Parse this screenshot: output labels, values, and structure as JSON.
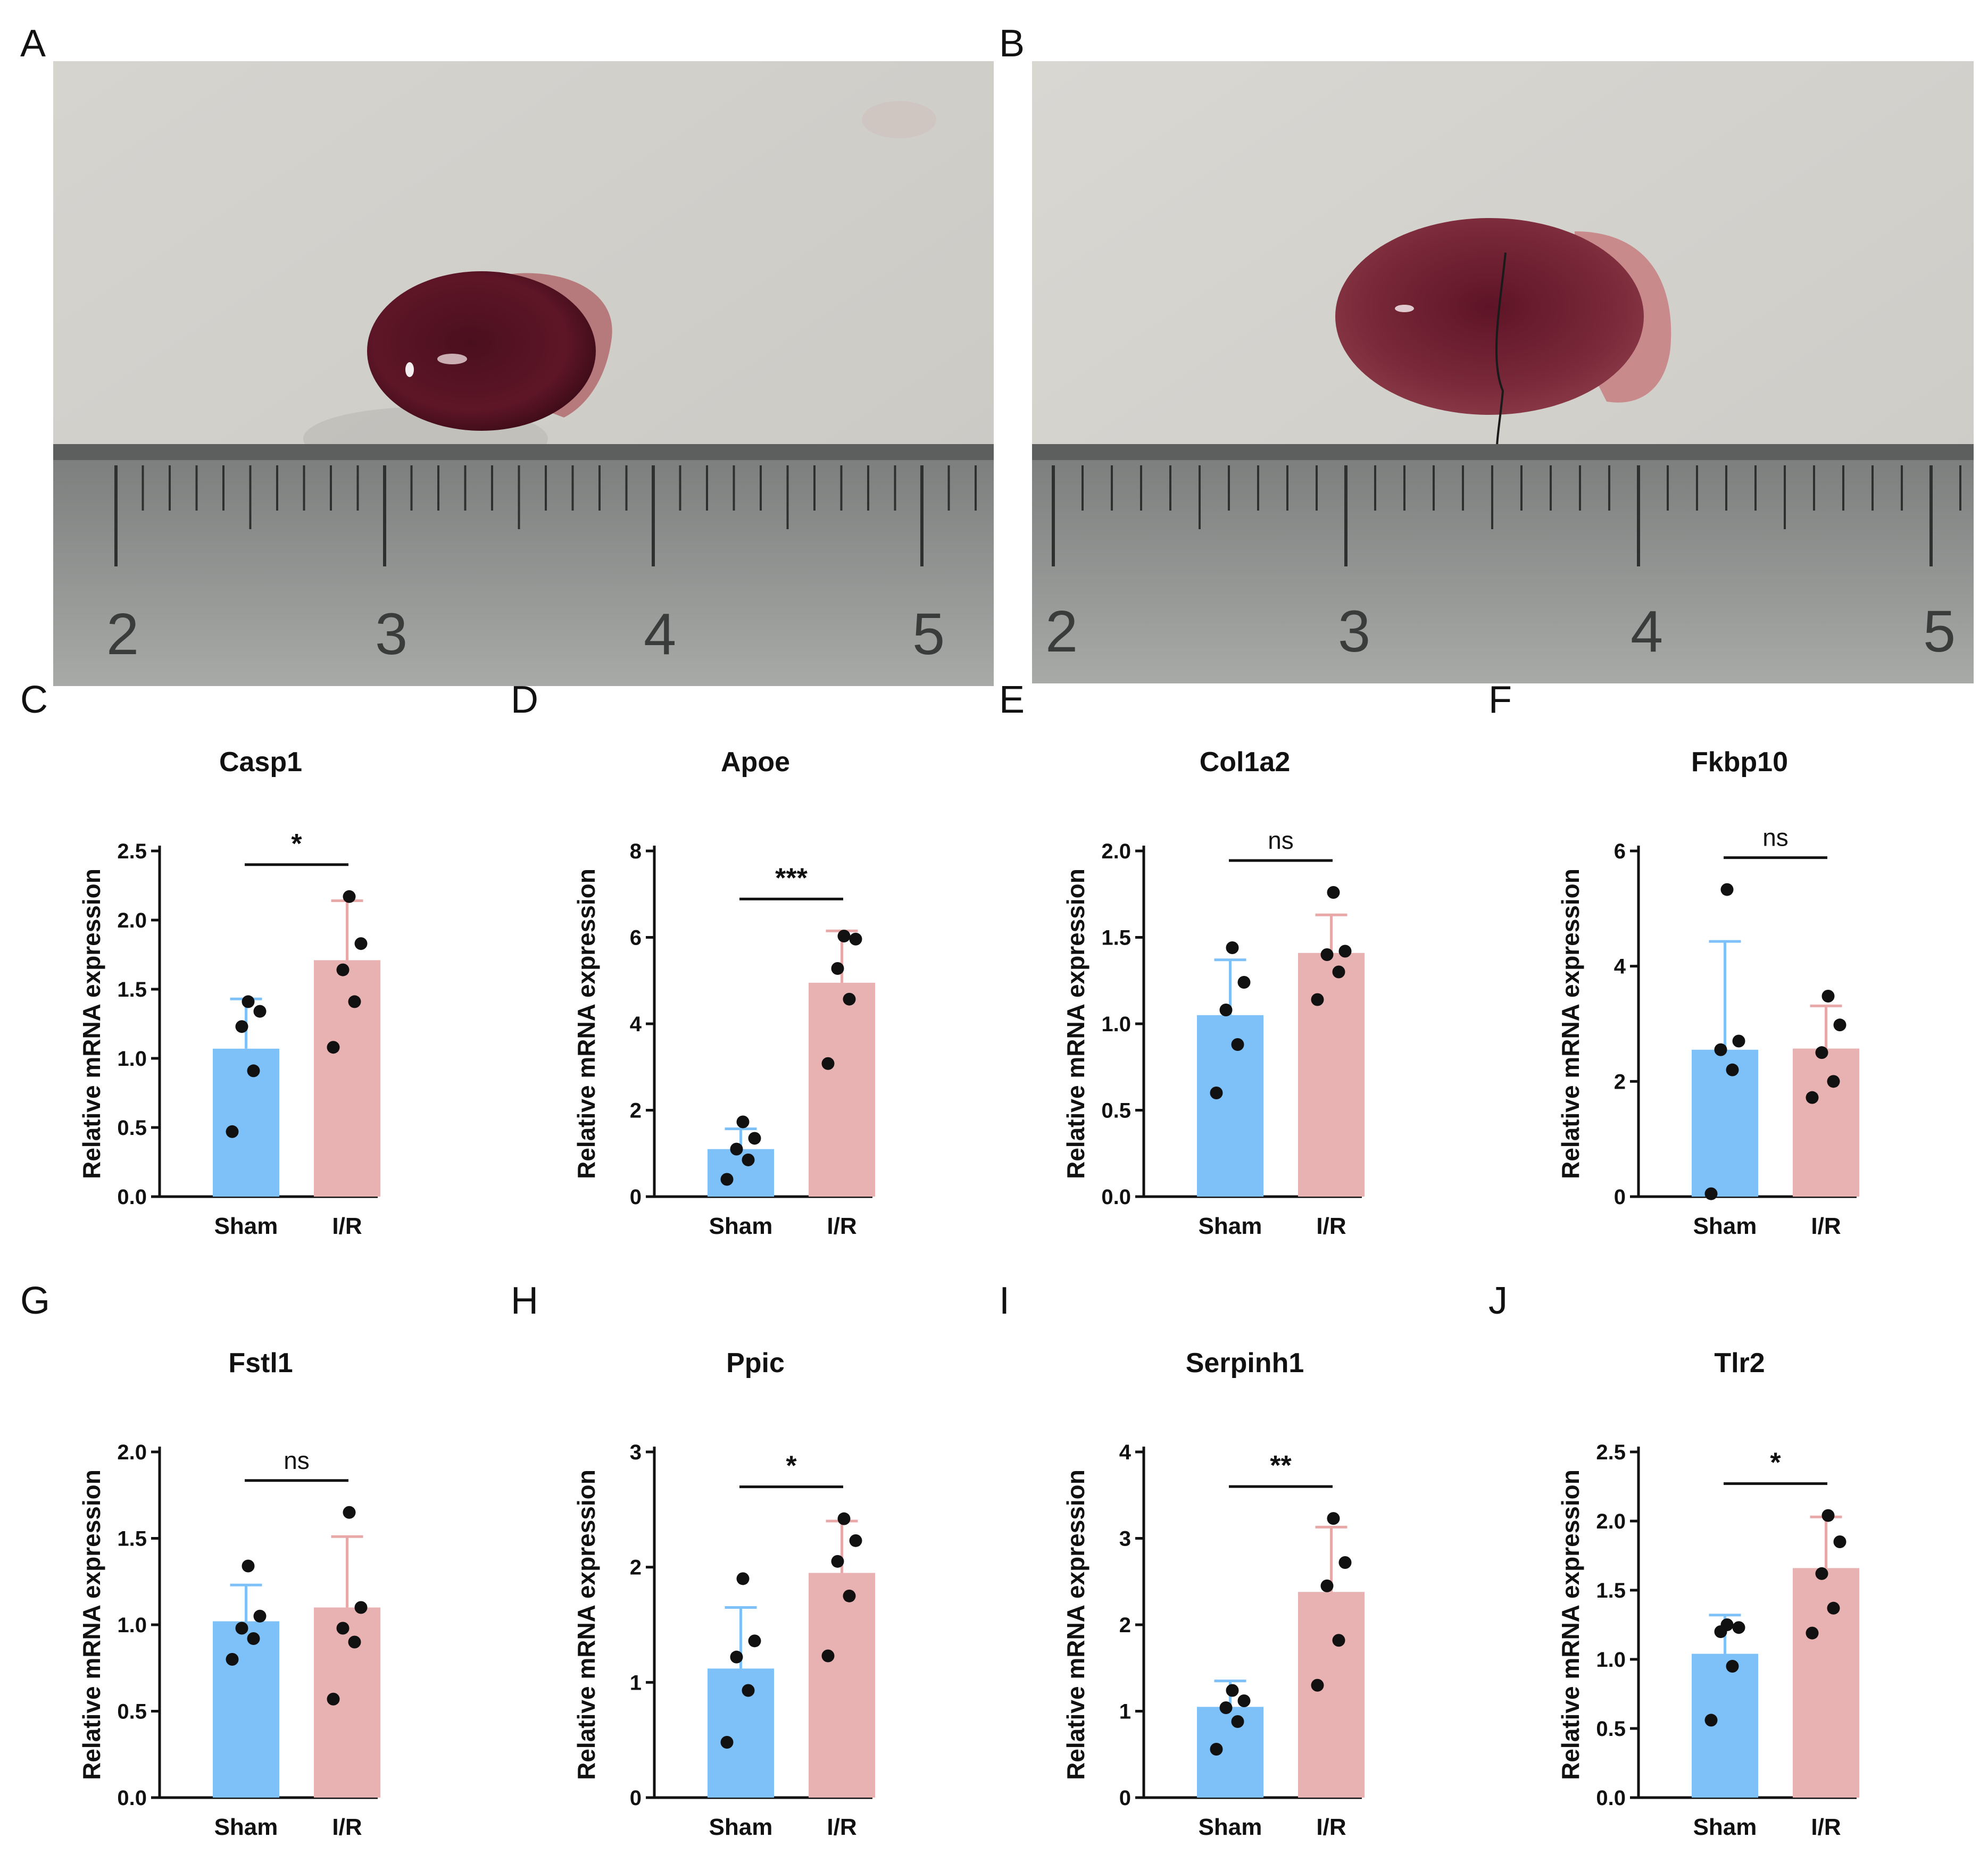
{
  "figure": {
    "panel_letters": [
      "A",
      "B",
      "C",
      "D",
      "E",
      "F",
      "G",
      "H",
      "I",
      "J"
    ],
    "photos": [
      {
        "panel": "A",
        "ruler_numbers": [
          "2",
          "3",
          "4",
          "5"
        ],
        "organ": "small-kidney"
      },
      {
        "panel": "B",
        "ruler_numbers": [
          "2",
          "3",
          "4",
          "5"
        ],
        "organ": "large-kidney"
      }
    ]
  },
  "colors": {
    "sham": "#7ec0f8",
    "ir": "#e8b2b2",
    "sham_err": "#7ec0f8",
    "ir_err": "#e8a8a8",
    "ink": "#111111"
  },
  "chart_data": [
    {
      "panel": "C",
      "type": "bar",
      "title": "Casp1",
      "ylabel": "Relative mRNA expression",
      "categories": [
        "Sham",
        "I/R"
      ],
      "ylim": [
        0,
        2.5
      ],
      "yticks": [
        "0.0",
        "0.5",
        "1.0",
        "1.5",
        "2.0",
        "2.5"
      ],
      "ytick_values": [
        0,
        0.5,
        1,
        1.5,
        2,
        2.5
      ],
      "values": [
        1.07,
        1.71
      ],
      "errors": [
        0.36,
        0.43
      ],
      "points": [
        [
          0.47,
          0.91,
          1.23,
          1.34,
          1.41
        ],
        [
          1.08,
          1.41,
          1.64,
          1.83,
          2.17
        ]
      ],
      "significance": "*"
    },
    {
      "panel": "D",
      "type": "bar",
      "title": "Apoe",
      "ylabel": "Relative mRNA expression",
      "categories": [
        "Sham",
        "I/R"
      ],
      "ylim": [
        0,
        8
      ],
      "yticks": [
        "0",
        "2",
        "4",
        "6",
        "8"
      ],
      "ytick_values": [
        0,
        2,
        4,
        6,
        8
      ],
      "values": [
        1.1,
        4.95
      ],
      "errors": [
        0.47,
        1.2
      ],
      "points": [
        [
          0.4,
          0.85,
          1.1,
          1.35,
          1.73
        ],
        [
          3.08,
          4.57,
          5.28,
          5.96,
          6.03
        ]
      ],
      "significance": "***"
    },
    {
      "panel": "E",
      "type": "bar",
      "title": "Col1a2",
      "ylabel": "Relative mRNA expression",
      "categories": [
        "Sham",
        "I/R"
      ],
      "ylim": [
        0,
        2.0
      ],
      "yticks": [
        "0.0",
        "0.5",
        "1.0",
        "1.5",
        "2.0"
      ],
      "ytick_values": [
        0,
        0.5,
        1,
        1.5,
        2
      ],
      "values": [
        1.05,
        1.41
      ],
      "errors": [
        0.32,
        0.22
      ],
      "points": [
        [
          0.6,
          0.88,
          1.08,
          1.24,
          1.44
        ],
        [
          1.14,
          1.3,
          1.4,
          1.42,
          1.76
        ]
      ],
      "significance": "ns"
    },
    {
      "panel": "F",
      "type": "bar",
      "title": "Fkbp10",
      "ylabel": "Relative mRNA expression",
      "categories": [
        "Sham",
        "I/R"
      ],
      "ylim": [
        0,
        6
      ],
      "yticks": [
        "0",
        "2",
        "4",
        "6"
      ],
      "ytick_values": [
        0,
        2,
        4,
        6
      ],
      "values": [
        2.55,
        2.57
      ],
      "errors": [
        1.88,
        0.74
      ],
      "points": [
        [
          0.05,
          2.2,
          2.55,
          2.7,
          5.33
        ],
        [
          1.72,
          2.0,
          2.5,
          2.98,
          3.48
        ]
      ],
      "significance": "ns"
    },
    {
      "panel": "G",
      "type": "bar",
      "title": "Fstl1",
      "ylabel": "Relative mRNA expression",
      "categories": [
        "Sham",
        "I/R"
      ],
      "ylim": [
        0,
        2.0
      ],
      "yticks": [
        "0.0",
        "0.5",
        "1.0",
        "1.5",
        "2.0"
      ],
      "ytick_values": [
        0,
        0.5,
        1,
        1.5,
        2
      ],
      "values": [
        1.02,
        1.1
      ],
      "errors": [
        0.21,
        0.41
      ],
      "points": [
        [
          0.8,
          0.92,
          0.98,
          1.05,
          1.34
        ],
        [
          0.57,
          0.9,
          0.98,
          1.1,
          1.65
        ]
      ],
      "significance": "ns"
    },
    {
      "panel": "H",
      "type": "bar",
      "title": "Ppic",
      "ylabel": "Relative mRNA expression",
      "categories": [
        "Sham",
        "I/R"
      ],
      "ylim": [
        0,
        3
      ],
      "yticks": [
        "0",
        "1",
        "2",
        "3"
      ],
      "ytick_values": [
        0,
        1,
        2,
        3
      ],
      "values": [
        1.12,
        1.95
      ],
      "errors": [
        0.53,
        0.45
      ],
      "points": [
        [
          0.48,
          0.93,
          1.22,
          1.36,
          1.9
        ],
        [
          1.23,
          1.75,
          2.05,
          2.23,
          2.42
        ]
      ],
      "significance": "*"
    },
    {
      "panel": "I",
      "type": "bar",
      "title": "Serpinh1",
      "ylabel": "Relative mRNA expression",
      "categories": [
        "Sham",
        "I/R"
      ],
      "ylim": [
        0,
        4
      ],
      "yticks": [
        "0",
        "1",
        "2",
        "3",
        "4"
      ],
      "ytick_values": [
        0,
        1,
        2,
        3,
        4
      ],
      "values": [
        1.05,
        2.38
      ],
      "errors": [
        0.3,
        0.75
      ],
      "points": [
        [
          0.56,
          0.88,
          1.04,
          1.12,
          1.24
        ],
        [
          1.3,
          1.82,
          2.45,
          2.72,
          3.23
        ]
      ],
      "significance": "**"
    },
    {
      "panel": "J",
      "type": "bar",
      "title": "Tlr2",
      "ylabel": "Relative mRNA expression",
      "categories": [
        "Sham",
        "I/R"
      ],
      "ylim": [
        0,
        2.5
      ],
      "yticks": [
        "0.0",
        "0.5",
        "1.0",
        "1.5",
        "2.0",
        "2.5"
      ],
      "ytick_values": [
        0,
        0.5,
        1,
        1.5,
        2,
        2.5
      ],
      "values": [
        1.04,
        1.66
      ],
      "errors": [
        0.28,
        0.37
      ],
      "points": [
        [
          0.56,
          0.95,
          1.2,
          1.23,
          1.25
        ],
        [
          1.19,
          1.37,
          1.62,
          1.85,
          2.04
        ]
      ],
      "significance": "*"
    }
  ]
}
